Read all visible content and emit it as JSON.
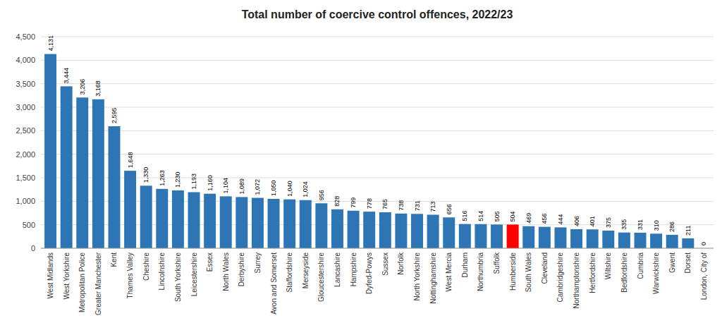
{
  "chart_data": {
    "type": "bar",
    "title": "Total number of coercive control offences, 2022/23",
    "categories": [
      "West Midlands",
      "West Yorkshire",
      "Metropolitan Police",
      "Greater Manchester",
      "Kent",
      "Thames Valley",
      "Cheshire",
      "Lincolnshire",
      "South Yorkshire",
      "Leicestershire",
      "Essex",
      "North Wales",
      "Derbyshire",
      "Surrey",
      "Avon and Somerset",
      "Staffordshire",
      "Merseyside",
      "Gloucestershire",
      "Lancashire",
      "Hampshire",
      "Dyfed-Powys",
      "Sussex",
      "Norfolk",
      "North Yorkshire",
      "Nottinghamshire",
      "West Mercia",
      "Durham",
      "Northumbria",
      "Suffolk",
      "Humberside",
      "South Wales",
      "Cleveland",
      "Cambridgeshire",
      "Northamptonshire",
      "Hertfordshire",
      "Wiltshire",
      "Bedfordshire",
      "Cumbria",
      "Warwickshire",
      "Gwent",
      "Dorset",
      "London, City of"
    ],
    "values": [
      4131,
      3444,
      3206,
      3168,
      2595,
      1648,
      1330,
      1263,
      1230,
      1193,
      1160,
      1104,
      1089,
      1072,
      1050,
      1040,
      1024,
      956,
      828,
      799,
      778,
      765,
      738,
      731,
      713,
      656,
      516,
      514,
      505,
      504,
      469,
      456,
      444,
      406,
      401,
      375,
      335,
      331,
      310,
      286,
      211,
      0
    ],
    "value_labels": [
      "4,131",
      "3,444",
      "3,206",
      "3,168",
      "2,595",
      "1,648",
      "1,330",
      "1,263",
      "1,230",
      "1,193",
      "1,160",
      "1,104",
      "1,089",
      "1,072",
      "1,050",
      "1,040",
      "1,024",
      "956",
      "828",
      "799",
      "778",
      "765",
      "738",
      "731",
      "713",
      "656",
      "516",
      "514",
      "505",
      "504",
      "469",
      "456",
      "444",
      "406",
      "401",
      "375",
      "335",
      "331",
      "310",
      "286",
      "211",
      "0"
    ],
    "colors": [
      "#2E75B6",
      "#2E75B6",
      "#2E75B6",
      "#2E75B6",
      "#2E75B6",
      "#2E75B6",
      "#2E75B6",
      "#2E75B6",
      "#2E75B6",
      "#2E75B6",
      "#2E75B6",
      "#2E75B6",
      "#2E75B6",
      "#2E75B6",
      "#2E75B6",
      "#2E75B6",
      "#2E75B6",
      "#2E75B6",
      "#2E75B6",
      "#2E75B6",
      "#2E75B6",
      "#2E75B6",
      "#2E75B6",
      "#2E75B6",
      "#2E75B6",
      "#2E75B6",
      "#2E75B6",
      "#2E75B6",
      "#2E75B6",
      "#FF0000",
      "#2E75B6",
      "#2E75B6",
      "#2E75B6",
      "#2E75B6",
      "#2E75B6",
      "#2E75B6",
      "#2E75B6",
      "#2E75B6",
      "#2E75B6",
      "#2E75B6",
      "#2E75B6",
      "#2E75B6"
    ],
    "ylim": [
      0,
      4500
    ],
    "yticks": [
      0,
      500,
      {
        "value": 1000,
        "label": "1,000"
      },
      {
        "value": 1500,
        "label": "1,500"
      },
      {
        "value": 2000,
        "label": "2,000"
      },
      {
        "value": 2500,
        "label": "2,500"
      },
      {
        "value": 3000,
        "label": "3,000"
      },
      {
        "value": 3500,
        "label": "3,500"
      },
      {
        "value": 4000,
        "label": "4,000"
      },
      {
        "value": 4500,
        "label": "4,500"
      }
    ],
    "grid": true,
    "data_labels": true
  }
}
